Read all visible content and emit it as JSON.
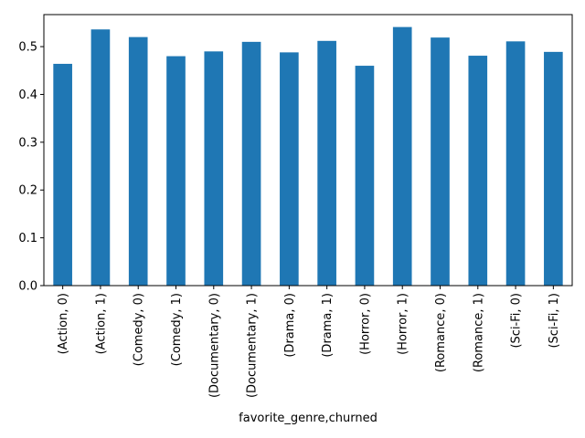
{
  "chart_data": {
    "type": "bar",
    "title": "",
    "xlabel": "favorite_genre,churned",
    "ylabel": "",
    "categories": [
      "(Action, 0)",
      "(Action, 1)",
      "(Comedy, 0)",
      "(Comedy, 1)",
      "(Documentary, 0)",
      "(Documentary, 1)",
      "(Drama, 0)",
      "(Drama, 1)",
      "(Horror, 0)",
      "(Horror, 1)",
      "(Romance, 0)",
      "(Romance, 1)",
      "(Sci-Fi, 0)",
      "(Sci-Fi, 1)"
    ],
    "values": [
      0.464,
      0.536,
      0.52,
      0.48,
      0.49,
      0.51,
      0.488,
      0.512,
      0.46,
      0.541,
      0.519,
      0.481,
      0.511,
      0.489
    ],
    "ylim": [
      0,
      0.567
    ],
    "yticks": [
      "0.0",
      "0.1",
      "0.2",
      "0.3",
      "0.4",
      "0.5"
    ],
    "bar_color": "#1f77b4",
    "grid": false,
    "legend": "none"
  }
}
